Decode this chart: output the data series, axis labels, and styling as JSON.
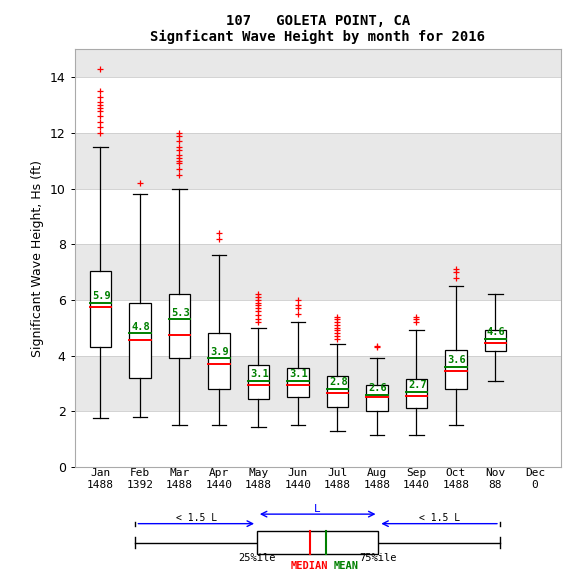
{
  "title_line1": "107   GOLETA POINT, CA",
  "title_line2": "Signficant Wave Height by month for 2016",
  "ylabel": "Significant Wave Height, Hs (ft)",
  "months": [
    "Jan",
    "Feb",
    "Mar",
    "Apr",
    "May",
    "Jun",
    "Jul",
    "Aug",
    "Sep",
    "Oct",
    "Nov",
    "Dec"
  ],
  "counts": [
    1488,
    1392,
    1488,
    1440,
    1488,
    1440,
    1488,
    1488,
    1440,
    1488,
    88,
    0
  ],
  "ylim": [
    0,
    15
  ],
  "yticks": [
    0,
    2,
    4,
    6,
    8,
    10,
    12,
    14
  ],
  "boxes": [
    {
      "q1": 4.3,
      "median": 5.75,
      "mean": 5.9,
      "q3": 7.05,
      "whislo": 1.75,
      "whishi": 11.5,
      "fliers_above": [
        12.0,
        12.2,
        12.4,
        12.6,
        12.8,
        12.9,
        13.0,
        13.1,
        13.3,
        13.5,
        14.3
      ],
      "fliers_below": []
    },
    {
      "q1": 3.2,
      "median": 4.55,
      "mean": 4.8,
      "q3": 5.9,
      "whislo": 1.8,
      "whishi": 9.8,
      "fliers_above": [
        10.2
      ],
      "fliers_below": []
    },
    {
      "q1": 3.9,
      "median": 4.75,
      "mean": 5.3,
      "q3": 6.2,
      "whislo": 1.5,
      "whishi": 10.0,
      "fliers_above": [
        10.5,
        10.7,
        10.9,
        11.0,
        11.1,
        11.2,
        11.4,
        11.5,
        11.7,
        11.9,
        12.0
      ],
      "fliers_below": []
    },
    {
      "q1": 2.8,
      "median": 3.7,
      "mean": 3.9,
      "q3": 4.8,
      "whislo": 1.5,
      "whishi": 7.6,
      "fliers_above": [
        8.2,
        8.4
      ],
      "fliers_below": []
    },
    {
      "q1": 2.45,
      "median": 2.95,
      "mean": 3.1,
      "q3": 3.65,
      "whislo": 1.45,
      "whishi": 5.0,
      "fliers_above": [
        5.2,
        5.3,
        5.45,
        5.6,
        5.7,
        5.8,
        5.9,
        6.0,
        6.1,
        6.2
      ],
      "fliers_below": []
    },
    {
      "q1": 2.5,
      "median": 2.95,
      "mean": 3.1,
      "q3": 3.55,
      "whislo": 1.5,
      "whishi": 5.2,
      "fliers_above": [
        5.5,
        5.7,
        5.8,
        6.0
      ],
      "fliers_below": []
    },
    {
      "q1": 2.15,
      "median": 2.65,
      "mean": 2.8,
      "q3": 3.25,
      "whislo": 1.3,
      "whishi": 4.4,
      "fliers_above": [
        4.6,
        4.7,
        4.8,
        4.9,
        5.0,
        5.1,
        5.2,
        5.3,
        5.4
      ],
      "fliers_below": []
    },
    {
      "q1": 2.0,
      "median": 2.5,
      "mean": 2.6,
      "q3": 2.95,
      "whislo": 1.15,
      "whishi": 3.9,
      "fliers_above": [
        4.3,
        4.35
      ],
      "fliers_below": []
    },
    {
      "q1": 2.1,
      "median": 2.55,
      "mean": 2.7,
      "q3": 3.15,
      "whislo": 1.15,
      "whishi": 4.9,
      "fliers_above": [
        5.2,
        5.3,
        5.4
      ],
      "fliers_below": []
    },
    {
      "q1": 2.8,
      "median": 3.45,
      "mean": 3.6,
      "q3": 4.2,
      "whislo": 1.5,
      "whishi": 6.5,
      "fliers_above": [
        6.8,
        7.0,
        7.1
      ],
      "fliers_below": []
    },
    {
      "q1": 4.15,
      "median": 4.45,
      "mean": 4.6,
      "q3": 4.9,
      "whislo": 3.1,
      "whishi": 6.2,
      "fliers_above": [],
      "fliers_below": []
    },
    null
  ],
  "bg_bands_colors": [
    [
      14,
      15,
      "#e8e8e8"
    ],
    [
      12,
      14,
      "#ffffff"
    ],
    [
      10,
      12,
      "#e8e8e8"
    ],
    [
      8,
      10,
      "#ffffff"
    ],
    [
      6,
      8,
      "#e8e8e8"
    ],
    [
      4,
      6,
      "#ffffff"
    ],
    [
      2,
      4,
      "#e8e8e8"
    ],
    [
      0,
      2,
      "#ffffff"
    ]
  ],
  "grid_color": "#cccccc",
  "box_color": "#000000",
  "median_color": "#ff0000",
  "mean_color": "#008000",
  "flierscolor": "#ff0000",
  "title_fontsize": 10,
  "tick_fontsize": 8,
  "ylabel_fontsize": 9
}
